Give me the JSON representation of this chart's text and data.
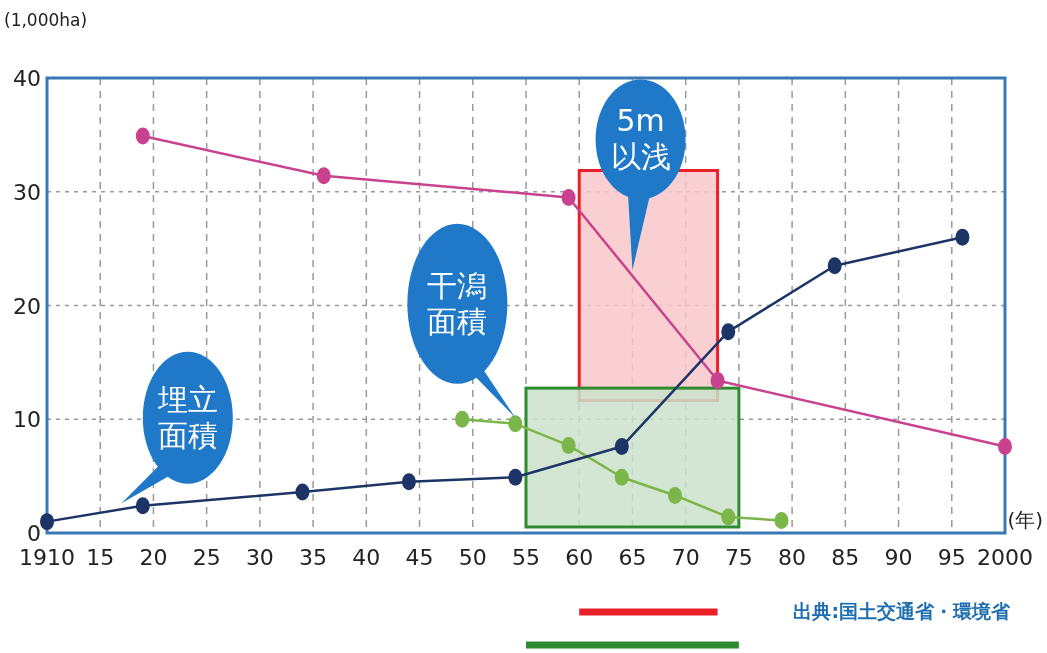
{
  "chart_data": {
    "type": "line",
    "ylabel": "(1,000ha)",
    "xlabel": "(年)",
    "xlim": [
      1910,
      2000
    ],
    "ylim": [
      0,
      40
    ],
    "xticks": [
      {
        "value": 1910,
        "label": "1910"
      },
      {
        "value": 1915,
        "label": "15"
      },
      {
        "value": 1920,
        "label": "20"
      },
      {
        "value": 1925,
        "label": "25"
      },
      {
        "value": 1930,
        "label": "30"
      },
      {
        "value": 1935,
        "label": "35"
      },
      {
        "value": 1940,
        "label": "40"
      },
      {
        "value": 1945,
        "label": "45"
      },
      {
        "value": 1950,
        "label": "50"
      },
      {
        "value": 1955,
        "label": "55"
      },
      {
        "value": 1960,
        "label": "60"
      },
      {
        "value": 1965,
        "label": "65"
      },
      {
        "value": 1970,
        "label": "70"
      },
      {
        "value": 1975,
        "label": "75"
      },
      {
        "value": 1980,
        "label": "80"
      },
      {
        "value": 1985,
        "label": "85"
      },
      {
        "value": 1990,
        "label": "90"
      },
      {
        "value": 1995,
        "label": "95"
      },
      {
        "value": 2000,
        "label": "2000"
      }
    ],
    "yticks": [
      0,
      10,
      20,
      30,
      40
    ],
    "grid": true,
    "marker": "circle",
    "legend": false,
    "series": [
      {
        "name": "5m以浅",
        "color": "#c8428f",
        "x": [
          1919,
          1936,
          1959,
          1973,
          2000
        ],
        "values": [
          34.9,
          31.4,
          29.5,
          13.4,
          7.6
        ]
      },
      {
        "name": "干潟面積",
        "color": "#7ab648",
        "x": [
          1949,
          1954,
          1959,
          1964,
          1969,
          1974,
          1979
        ],
        "values": [
          10,
          9.6,
          7.7,
          4.9,
          3.3,
          1.4,
          1.1
        ]
      },
      {
        "name": "埋立面積",
        "color": "#1c3566",
        "x": [
          1910,
          1919,
          1934,
          1944,
          1954,
          1964,
          1974,
          1984,
          1996
        ],
        "values": [
          1,
          2.4,
          3.6,
          4.5,
          4.9,
          7.6,
          17.7,
          23.5,
          26
        ]
      }
    ],
    "bands": [
      {
        "axis": "x",
        "from": 1960,
        "to": 1973,
        "color": "#e8202a"
      },
      {
        "axis": "x",
        "from": 1955,
        "to": 1975,
        "color": "#2e8b2e"
      }
    ],
    "annotations": [
      "出典:国土交通省・環境省"
    ]
  }
}
